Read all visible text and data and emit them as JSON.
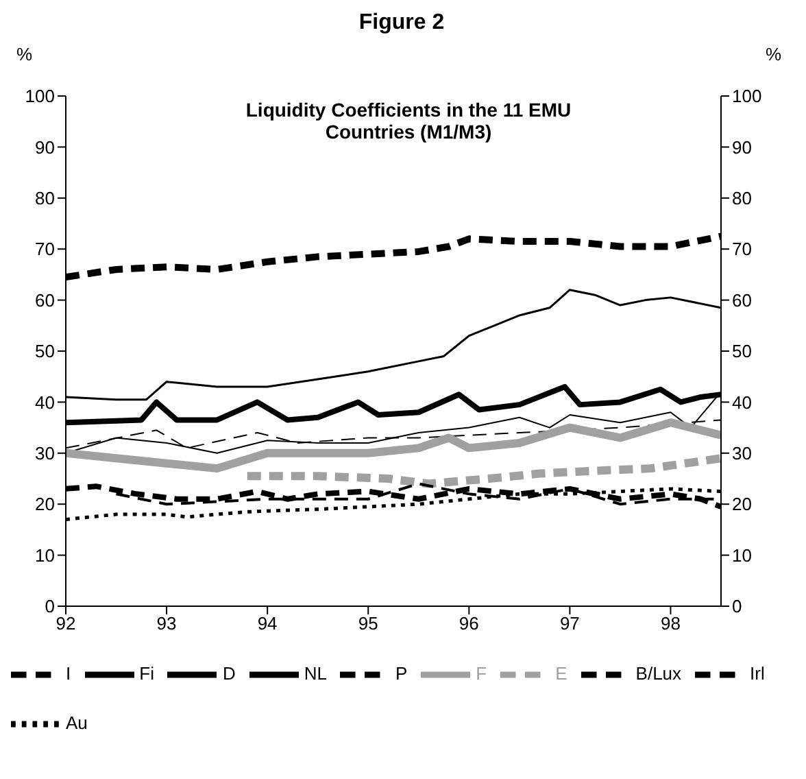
{
  "chart_data": {
    "type": "line",
    "title": "Figure 2",
    "subtitle": "Liquidity Coefficients in the 11 EMU Countries (M1/M3)",
    "ylabel": "%",
    "y2label": "%",
    "xlim": [
      92,
      98.5
    ],
    "xticks": [
      92,
      93,
      94,
      95,
      96,
      97,
      98
    ],
    "ylim": [
      0,
      100
    ],
    "yticks": [
      0,
      10,
      20,
      30,
      40,
      50,
      60,
      70,
      80,
      90,
      100
    ],
    "y2lim": [
      0,
      100
    ],
    "y2ticks": [
      0,
      10,
      20,
      30,
      40,
      50,
      60,
      70,
      80,
      90,
      100
    ],
    "grid": false,
    "legend": "bottom",
    "marker": "none",
    "series": [
      {
        "name": "I",
        "color": "#000000",
        "line_style": "dashed",
        "x": [
          92,
          92.3,
          92.7,
          93.1,
          93.5,
          93.9,
          94.2,
          94.5,
          95,
          95.5,
          96,
          96.5,
          97,
          97.5,
          98,
          98.3,
          98.5
        ],
        "values": [
          23,
          23.5,
          22,
          21,
          21,
          22.5,
          21,
          22,
          22.5,
          21,
          23,
          22,
          23,
          21,
          22,
          21,
          19.5
        ]
      },
      {
        "name": "Fi",
        "color": "#000000",
        "line_style": "solid",
        "x": [
          92,
          92.5,
          92.8,
          93,
          93.5,
          94,
          94.5,
          95,
          95.5,
          95.75,
          96,
          96.25,
          96.5,
          96.8,
          97,
          97.25,
          97.5,
          97.75,
          98,
          98.5
        ],
        "values": [
          41,
          40.5,
          40.5,
          44,
          43,
          43,
          44.5,
          46,
          48,
          49,
          53,
          55,
          57,
          58.5,
          62,
          61,
          59,
          60,
          60.5,
          58.5
        ]
      },
      {
        "name": "D",
        "color": "#000000",
        "line_style": "solid",
        "x": [
          92,
          92.75,
          92.9,
          93.1,
          93.5,
          93.9,
          94.2,
          94.5,
          94.9,
          95.1,
          95.5,
          95.9,
          96.1,
          96.5,
          96.95,
          97.1,
          97.5,
          97.9,
          98.1,
          98.3,
          98.5
        ],
        "values": [
          36,
          36.5,
          40,
          36.5,
          36.5,
          40,
          36.5,
          37,
          40,
          37.5,
          38,
          41.5,
          38.5,
          39.5,
          43,
          39.5,
          40,
          42.5,
          40,
          41,
          41.5
        ]
      },
      {
        "name": "NL",
        "color": "#000000",
        "line_style": "solid",
        "x": [
          92,
          92.5,
          93,
          93.5,
          94,
          94.5,
          95,
          95.5,
          96,
          96.5,
          96.8,
          97,
          97.5,
          98,
          98.2,
          98.5
        ],
        "values": [
          30,
          33,
          32,
          30,
          32.5,
          32,
          32,
          34,
          35,
          37,
          35,
          37.5,
          36,
          38,
          35,
          42
        ]
      },
      {
        "name": "P",
        "color": "#000000",
        "line_style": "dashed",
        "x": [
          92,
          92.9,
          93.2,
          93.9,
          94.3,
          95,
          95.5,
          96.5,
          97.5,
          98.5
        ],
        "values": [
          31,
          34.5,
          31,
          34,
          32,
          33,
          33,
          34,
          35,
          36.5
        ]
      },
      {
        "name": "F",
        "color": "#a0a0a0",
        "line_style": "solid",
        "x": [
          92,
          92.5,
          93,
          93.5,
          94,
          94.5,
          95,
          95.5,
          95.8,
          96,
          96.5,
          97,
          97.5,
          98,
          98.5
        ],
        "values": [
          30,
          29,
          28,
          27,
          30,
          30,
          30,
          31,
          33,
          31,
          32,
          35,
          33,
          36,
          33.5
        ]
      },
      {
        "name": "E",
        "color": "#a0a0a0",
        "line_style": "dashed",
        "x": [
          93.8,
          94.5,
          95.2,
          95.6,
          96.2,
          96.7,
          97.2,
          97.8,
          98.5
        ],
        "values": [
          25.5,
          25.5,
          25,
          24,
          25,
          26,
          26.5,
          27,
          29
        ]
      },
      {
        "name": "B/Lux",
        "color": "#000000",
        "line_style": "dashed",
        "x": [
          92,
          92.5,
          93,
          93.5,
          94,
          94.5,
          95,
          95.5,
          95.8,
          96,
          96.5,
          97,
          97.5,
          98,
          98.5
        ],
        "values": [
          64.5,
          66,
          66.5,
          66,
          67.5,
          68.5,
          69,
          69.5,
          70.5,
          72,
          71.5,
          71.5,
          70.5,
          70.5,
          72.5
        ]
      },
      {
        "name": "Irl",
        "color": "#000000",
        "line_style": "dashed",
        "x": [
          92.5,
          93,
          94,
          95,
          95.5,
          96,
          96.5,
          97,
          97.5,
          98,
          98.5
        ],
        "values": [
          22,
          20,
          21,
          21,
          24,
          22,
          21,
          23,
          20,
          21,
          21
        ]
      },
      {
        "name": "Au",
        "color": "#000000",
        "line_style": "dotted",
        "x": [
          92,
          92.5,
          93,
          93.2,
          93.8,
          94.5,
          95,
          95.5,
          96,
          96.5,
          97,
          97.5,
          98,
          98.5
        ],
        "values": [
          17,
          18,
          18,
          17.5,
          18.5,
          19,
          19.5,
          20,
          21,
          22,
          22,
          22.5,
          23,
          22.5
        ]
      }
    ]
  }
}
